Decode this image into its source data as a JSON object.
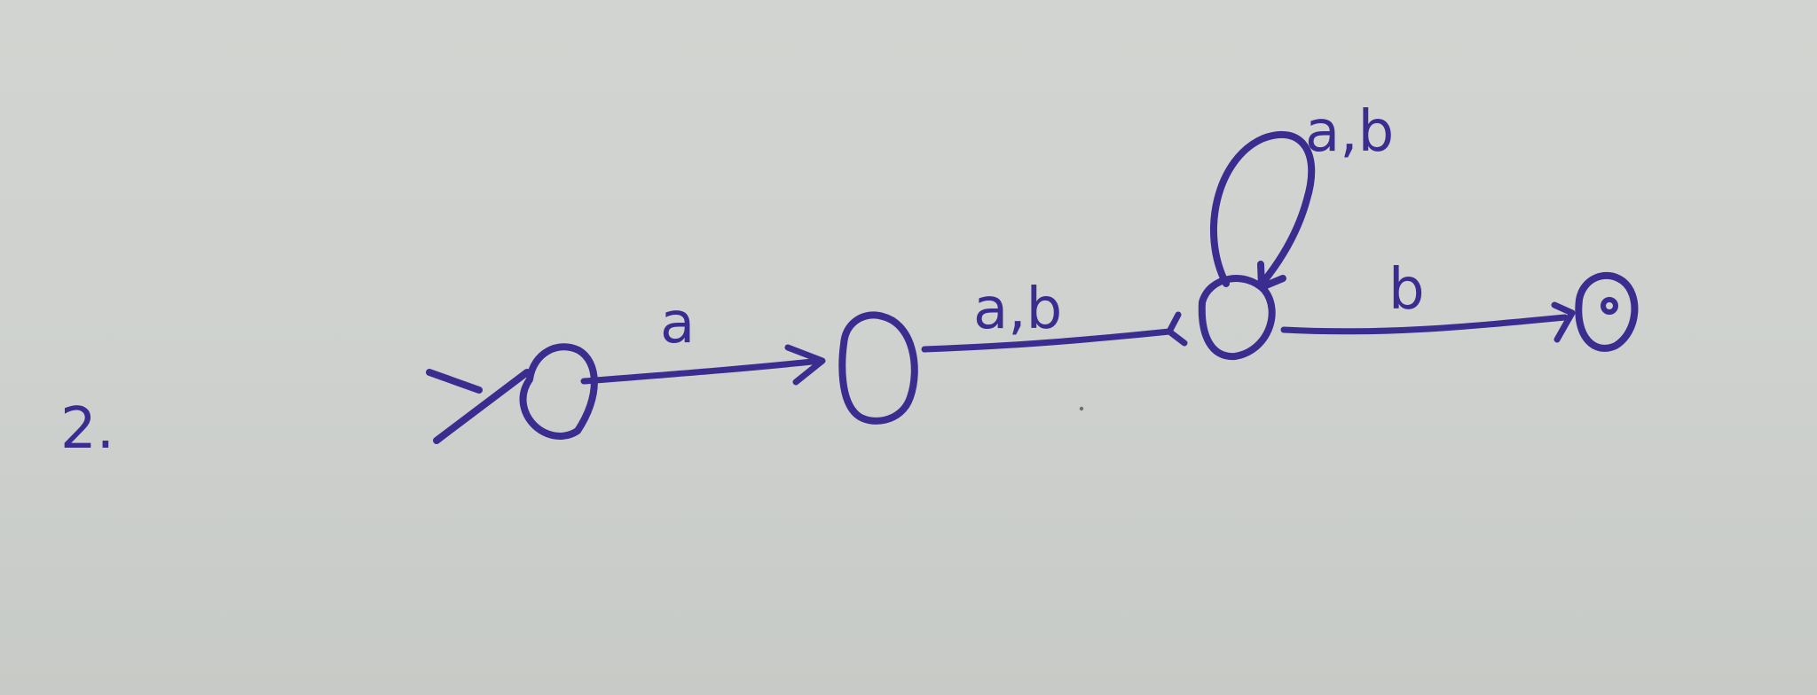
{
  "problem_number": "2.",
  "transitions": [
    {
      "label": "a"
    },
    {
      "label": "a,b"
    },
    {
      "label": "a,b"
    },
    {
      "label": "b"
    }
  ],
  "ink_color": "#3b2d8f",
  "paper_color": "#d0d3cf"
}
